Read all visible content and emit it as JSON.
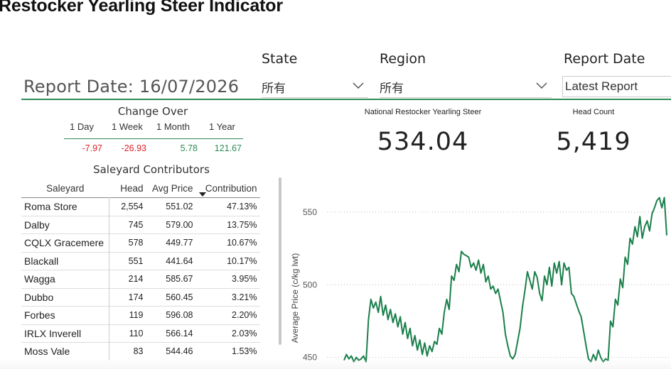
{
  "page": {
    "title": "Restocker Yearling Steer Indicator",
    "report_date_label": "Report Date: 16/07/2026"
  },
  "filters": {
    "state": {
      "label": "State",
      "value": "所有"
    },
    "region": {
      "label": "Region",
      "value": "所有"
    },
    "report_date": {
      "label": "Report Date",
      "value": "Latest Report"
    }
  },
  "change_over": {
    "title": "Change Over",
    "periods": [
      "1 Day",
      "1 Week",
      "1 Month",
      "1 Year"
    ],
    "values": [
      "-7.97",
      "-26.93",
      "5.78",
      "121.67"
    ],
    "value_colors": [
      "#e0202a",
      "#e0202a",
      "#2e8b57",
      "#2e8b57"
    ]
  },
  "saleyards": {
    "title": "Saleyard Contributors",
    "columns": [
      "Saleyard",
      "Head",
      "Avg Price",
      "Contribution"
    ],
    "rows": [
      [
        "Roma Store",
        "2,554",
        "551.02",
        "47.13%"
      ],
      [
        "Dalby",
        "745",
        "579.00",
        "13.75%"
      ],
      [
        "CQLX Gracemere",
        "578",
        "449.77",
        "10.67%"
      ],
      [
        "Blackall",
        "551",
        "441.64",
        "10.17%"
      ],
      [
        "Wagga",
        "214",
        "585.67",
        "3.95%"
      ],
      [
        "Dubbo",
        "174",
        "560.45",
        "3.21%"
      ],
      [
        "Forbes",
        "119",
        "596.08",
        "2.20%"
      ],
      [
        "IRLX Inverell",
        "110",
        "566.14",
        "2.03%"
      ],
      [
        "Moss Vale",
        "83",
        "544.46",
        "1.53%"
      ]
    ]
  },
  "cards": {
    "indicator": {
      "label": "National Restocker Yearling Steer",
      "value": "534.04"
    },
    "head_count": {
      "label": "Head Count",
      "value": "5,419"
    }
  },
  "chart_data": {
    "type": "line",
    "ylabel": "Average Price (c/kg lwt)",
    "yticks": [
      550,
      500,
      450
    ],
    "ylim": [
      442,
      570
    ],
    "series": [
      {
        "color": "#1a7f4b",
        "values": [
          448,
          452,
          449,
          451,
          447,
          450,
          448,
          449,
          451,
          447,
          476,
          490,
          484,
          488,
          481,
          492,
          479,
          486,
          476,
          483,
          474,
          480,
          471,
          478,
          466,
          474,
          463,
          470,
          458,
          465,
          455,
          462,
          452,
          460,
          451,
          458,
          454,
          461,
          459,
          470,
          466,
          481,
          490,
          483,
          506,
          503,
          514,
          509,
          523,
          521,
          520,
          519,
          512,
          515,
          510,
          517,
          508,
          514,
          502,
          506,
          497,
          499,
          494,
          497,
          489,
          481,
          466,
          458,
          451,
          449,
          452,
          461,
          470,
          485,
          496,
          509,
          503,
          497,
          509,
          505,
          494,
          489,
          506,
          500,
          512,
          499,
          515,
          508,
          516,
          500,
          515,
          510,
          512,
          494,
          492,
          487,
          482,
          478,
          468,
          458,
          449,
          447,
          452,
          448,
          455,
          450,
          447,
          449,
          448,
          475,
          471,
          490,
          486,
          504,
          498,
          519,
          514,
          532,
          528,
          540,
          533,
          547,
          532,
          540,
          544,
          537,
          549,
          553,
          558,
          560,
          553,
          560,
          534
        ]
      }
    ]
  }
}
